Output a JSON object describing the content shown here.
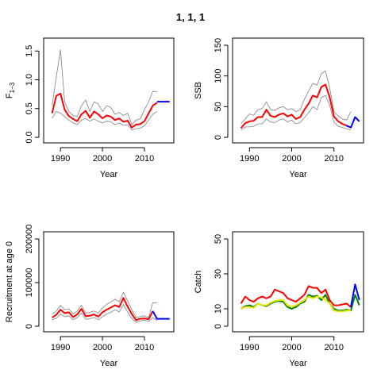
{
  "title": "1, 1, 1",
  "chart_data": [
    {
      "type": "line",
      "ylabel_main": "F",
      "ylabel_sub": "1−3",
      "xlabel": "Year",
      "xlim": [
        1986,
        2017
      ],
      "ylim": [
        0,
        1.6
      ],
      "xticks": [
        1990,
        2000,
        2010
      ],
      "yticks": [
        0.0,
        0.5,
        1.0,
        1.5
      ],
      "series": [
        {
          "role": "upper",
          "color": "#808080",
          "x": [
            1988,
            1989,
            1990,
            1991,
            1992,
            1993,
            1994,
            1995,
            1996,
            1997,
            1998,
            1999,
            2000,
            2001,
            2002,
            2003,
            2004,
            2005,
            2006,
            2007,
            2008,
            2009,
            2010,
            2011,
            2012,
            2013
          ],
          "y": [
            0.55,
            1.05,
            1.52,
            0.62,
            0.45,
            0.38,
            0.36,
            0.55,
            0.65,
            0.45,
            0.62,
            0.58,
            0.45,
            0.55,
            0.52,
            0.4,
            0.43,
            0.38,
            0.42,
            0.22,
            0.3,
            0.32,
            0.48,
            0.62,
            0.8,
            0.79
          ]
        },
        {
          "role": "lower",
          "color": "#808080",
          "x": [
            1988,
            1989,
            1990,
            1991,
            1992,
            1993,
            1994,
            1995,
            1996,
            1997,
            1998,
            1999,
            2000,
            2001,
            2002,
            2003,
            2004,
            2005,
            2006,
            2007,
            2008,
            2009,
            2010,
            2011,
            2012,
            2013
          ],
          "y": [
            0.33,
            0.45,
            0.42,
            0.36,
            0.3,
            0.25,
            0.22,
            0.3,
            0.33,
            0.28,
            0.32,
            0.28,
            0.25,
            0.28,
            0.27,
            0.22,
            0.25,
            0.21,
            0.22,
            0.13,
            0.15,
            0.16,
            0.2,
            0.3,
            0.4,
            0.45
          ]
        },
        {
          "role": "estimate",
          "color": "#ff0000",
          "x": [
            1988,
            1989,
            1990,
            1991,
            1992,
            1993,
            1994,
            1995,
            1996,
            1997,
            1998,
            1999,
            2000,
            2001,
            2002,
            2003,
            2004,
            2005,
            2006,
            2007,
            2008,
            2009,
            2010,
            2011,
            2012,
            2013
          ],
          "y": [
            0.42,
            0.72,
            0.76,
            0.48,
            0.37,
            0.32,
            0.28,
            0.4,
            0.46,
            0.34,
            0.45,
            0.4,
            0.33,
            0.38,
            0.36,
            0.3,
            0.33,
            0.27,
            0.29,
            0.17,
            0.22,
            0.23,
            0.28,
            0.42,
            0.55,
            0.6
          ]
        },
        {
          "role": "projection",
          "color": "#0000ff",
          "x": [
            2013,
            2014,
            2015,
            2016
          ],
          "y": [
            0.62,
            0.62,
            0.62,
            0.62
          ]
        }
      ]
    },
    {
      "type": "line",
      "ylabel_main": "SSB",
      "xlabel": "Year",
      "xlim": [
        1986,
        2017
      ],
      "ylim": [
        0,
        150
      ],
      "xticks": [
        1990,
        2000,
        2010
      ],
      "yticks": [
        0,
        50,
        100,
        150
      ],
      "series": [
        {
          "role": "upper",
          "color": "#808080",
          "x": [
            1988,
            1989,
            1990,
            1991,
            1992,
            1993,
            1994,
            1995,
            1996,
            1997,
            1998,
            1999,
            2000,
            2001,
            2002,
            2003,
            2004,
            2005,
            2006,
            2007,
            2008,
            2009,
            2010,
            2011,
            2012,
            2013,
            2014
          ],
          "y": [
            22,
            30,
            38,
            36,
            45,
            47,
            58,
            45,
            44,
            48,
            50,
            45,
            47,
            42,
            45,
            62,
            75,
            88,
            85,
            104,
            108,
            80,
            42,
            35,
            30,
            28,
            42
          ]
        },
        {
          "role": "lower",
          "color": "#808080",
          "x": [
            1988,
            1989,
            1990,
            1991,
            1992,
            1993,
            1994,
            1995,
            1996,
            1997,
            1998,
            1999,
            2000,
            2001,
            2002,
            2003,
            2004,
            2005,
            2006,
            2007,
            2008,
            2009,
            2010,
            2011,
            2012,
            2013,
            2014
          ],
          "y": [
            12,
            17,
            17,
            18,
            22,
            22,
            30,
            25,
            24,
            28,
            30,
            25,
            28,
            22,
            24,
            32,
            40,
            50,
            45,
            65,
            68,
            52,
            25,
            18,
            16,
            14,
            12
          ]
        },
        {
          "role": "estimate",
          "color": "#ff0000",
          "x": [
            1988,
            1989,
            1990,
            1991,
            1992,
            1993,
            1994,
            1995,
            1996,
            1997,
            1998,
            1999,
            2000,
            2001,
            2002,
            2003,
            2004,
            2005,
            2006,
            2007,
            2008,
            2009,
            2010,
            2011,
            2012,
            2013
          ],
          "y": [
            15,
            23,
            26,
            27,
            33,
            33,
            45,
            35,
            33,
            37,
            39,
            34,
            37,
            30,
            33,
            45,
            55,
            68,
            65,
            82,
            86,
            65,
            34,
            26,
            22,
            19
          ]
        },
        {
          "role": "projection",
          "color": "#0000ff",
          "x": [
            2013,
            2014,
            2015,
            2016
          ],
          "y": [
            19,
            16,
            33,
            26
          ]
        }
      ]
    },
    {
      "type": "line",
      "ylabel_main": "Recruitment at age 0",
      "xlabel": "Year",
      "xlim": [
        1986,
        2017
      ],
      "ylim": [
        0,
        200000
      ],
      "xticks": [
        1990,
        2000,
        2010
      ],
      "yticks": [
        0,
        100000,
        200000
      ],
      "ytick_labels": [
        "0",
        "100000",
        "200000"
      ],
      "series": [
        {
          "role": "upper",
          "color": "#808080",
          "x": [
            1988,
            1989,
            1990,
            1991,
            1992,
            1993,
            1994,
            1995,
            1996,
            1997,
            1998,
            1999,
            2000,
            2001,
            2002,
            2003,
            2004,
            2005,
            2006,
            2007,
            2008,
            2009,
            2010,
            2011,
            2012,
            2013
          ],
          "y": [
            28000,
            35000,
            48000,
            38000,
            40000,
            28000,
            35000,
            48000,
            30000,
            32000,
            35000,
            30000,
            42000,
            50000,
            55000,
            62000,
            56000,
            78000,
            58000,
            38000,
            20000,
            22000,
            24000,
            20000,
            54000,
            54000
          ]
        },
        {
          "role": "lower",
          "color": "#808080",
          "x": [
            1988,
            1989,
            1990,
            1991,
            1992,
            1993,
            1994,
            1995,
            1996,
            1997,
            1998,
            1999,
            2000,
            2001,
            2002,
            2003,
            2004,
            2005,
            2006,
            2007,
            2008,
            2009,
            2010,
            2011,
            2012,
            2013
          ],
          "y": [
            15000,
            18000,
            28000,
            22000,
            24000,
            15000,
            20000,
            30000,
            16000,
            17000,
            20000,
            15000,
            22000,
            28000,
            32000,
            38000,
            33000,
            50000,
            32000,
            18000,
            9000,
            12000,
            14000,
            11000,
            20000,
            13000
          ]
        },
        {
          "role": "estimate",
          "color": "#ff0000",
          "x": [
            1988,
            1989,
            1990,
            1991,
            1992,
            1993,
            1994,
            1995,
            1996,
            1997,
            1998,
            1999,
            2000,
            2001,
            2002,
            2003,
            2004,
            2005,
            2006,
            2007,
            2008,
            2009,
            2010,
            2011,
            2012
          ],
          "y": [
            20000,
            26000,
            38000,
            30000,
            32000,
            21000,
            27000,
            40000,
            23000,
            24000,
            27000,
            22000,
            32000,
            38000,
            43000,
            48000,
            44000,
            65000,
            45000,
            28000,
            14000,
            17000,
            18000,
            16000,
            35000
          ]
        },
        {
          "role": "projection",
          "color": "#0000ff",
          "x": [
            2012,
            2013,
            2014,
            2015,
            2016
          ],
          "y": [
            35000,
            17000,
            17000,
            17000,
            17000
          ]
        }
      ]
    },
    {
      "type": "line",
      "ylabel_main": "Catch",
      "xlabel": "Year",
      "xlim": [
        1986,
        2017
      ],
      "ylim": [
        0,
        50
      ],
      "xticks": [
        1990,
        2000,
        2010
      ],
      "yticks": [
        0,
        10,
        30,
        50
      ],
      "series": [
        {
          "role": "green",
          "color": "#008000",
          "x": [
            1988,
            1989,
            1990,
            1991,
            1992,
            1993,
            1994,
            1995,
            1996,
            1997,
            1998,
            1999,
            2000,
            2001,
            2002,
            2003,
            2004,
            2005,
            2006,
            2007,
            2008,
            2009,
            2010,
            2011,
            2012,
            2013,
            2014,
            2015,
            2016
          ],
          "y": [
            10,
            11.5,
            12,
            11,
            13,
            12,
            11.5,
            13,
            14,
            14.5,
            14,
            11,
            10,
            11,
            13,
            14,
            18,
            17,
            17.5,
            15,
            18,
            13,
            10,
            9,
            9,
            9.5,
            9,
            18,
            12
          ]
        },
        {
          "role": "yellow",
          "color": "#e6e600",
          "x": [
            1988,
            1989,
            1990,
            1991,
            1992,
            1993,
            1994,
            1995,
            1996,
            1997,
            1998,
            1999,
            2000,
            2001,
            2002,
            2003,
            2004,
            2005,
            2006,
            2007,
            2008,
            2009,
            2010,
            2011,
            2012,
            2013,
            2014
          ],
          "y": [
            10,
            11,
            11,
            10.5,
            13,
            12,
            12,
            13.5,
            14.5,
            15,
            15,
            12,
            11,
            12,
            13.5,
            15,
            17,
            16,
            17,
            16.5,
            15,
            13,
            9,
            8.5,
            8.5,
            9,
            9
          ]
        },
        {
          "role": "estimate",
          "color": "#ff0000",
          "x": [
            1988,
            1989,
            1990,
            1991,
            1992,
            1993,
            1994,
            1995,
            1996,
            1997,
            1998,
            1999,
            2000,
            2001,
            2002,
            2003,
            2004,
            2005,
            2006,
            2007,
            2008,
            2009,
            2010,
            2011,
            2012,
            2013,
            2014
          ],
          "y": [
            13,
            17,
            15,
            14,
            16,
            17,
            16,
            17,
            21,
            20,
            19,
            16,
            15,
            14,
            16,
            18,
            23,
            22,
            22,
            19,
            21,
            15,
            12,
            12,
            12.5,
            13,
            11
          ]
        },
        {
          "role": "projection",
          "color": "#0000ff",
          "x": [
            2014,
            2015,
            2016
          ],
          "y": [
            11,
            24,
            15
          ]
        }
      ]
    }
  ]
}
